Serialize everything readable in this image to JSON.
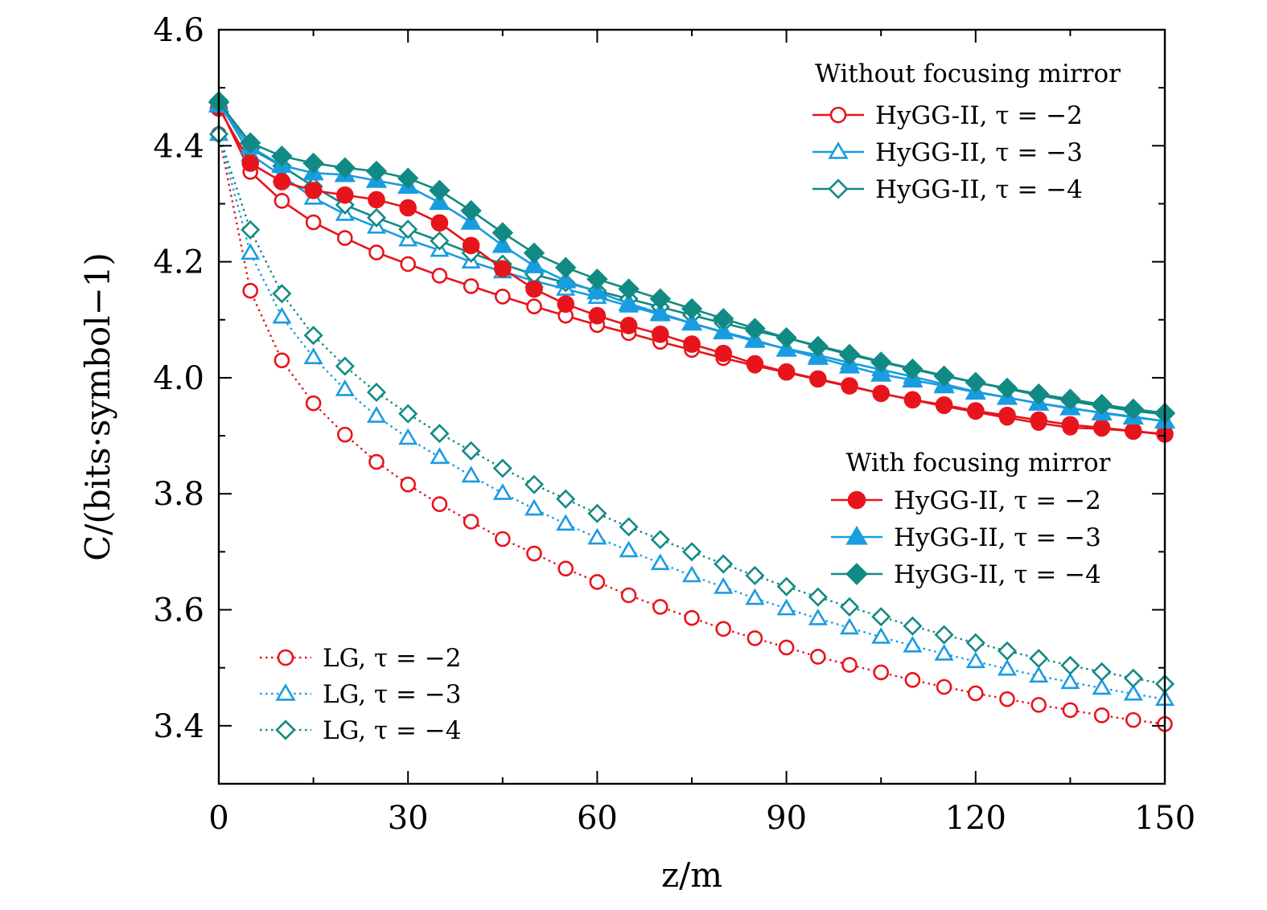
{
  "chart_data": {
    "type": "line",
    "xlabel": "z/m",
    "ylabel": "C/(bits·symbol−1)",
    "xlim": [
      0,
      150
    ],
    "ylim": [
      3.3,
      4.6
    ],
    "xticks": [
      0,
      30,
      60,
      90,
      120,
      150
    ],
    "xtick_labels": [
      "0",
      "30",
      "60",
      "90",
      "120",
      "150"
    ],
    "yticks": [
      3.4,
      3.6,
      3.8,
      4.0,
      4.2,
      4.4,
      4.6
    ],
    "ytick_labels": [
      "3.4",
      "3.6",
      "3.8",
      "4.0",
      "4.2",
      "4.4",
      "4.6"
    ],
    "grid": false,
    "x": [
      0,
      5,
      10,
      15,
      20,
      25,
      30,
      35,
      40,
      45,
      50,
      55,
      60,
      65,
      70,
      75,
      80,
      85,
      90,
      95,
      100,
      105,
      110,
      115,
      120,
      125,
      130,
      135,
      140,
      145,
      150
    ],
    "legend_groups": [
      {
        "title": "Without focusing mirror",
        "position": "top-right",
        "entries": [
          {
            "series": 0,
            "label": "HyGG-II, τ = −2"
          },
          {
            "series": 1,
            "label": "HyGG-II, τ = −3"
          },
          {
            "series": 2,
            "label": "HyGG-II, τ = −4"
          }
        ]
      },
      {
        "title": "With focusing mirror",
        "position": "center-right",
        "entries": [
          {
            "series": 3,
            "label": "HyGG-II, τ = −2"
          },
          {
            "series": 4,
            "label": "HyGG-II, τ = −3"
          },
          {
            "series": 5,
            "label": "HyGG-II, τ = −4"
          }
        ]
      },
      {
        "title": "",
        "position": "bottom-left",
        "entries": [
          {
            "series": 6,
            "label": "LG, τ = −2"
          },
          {
            "series": 7,
            "label": "LG, τ = −3"
          },
          {
            "series": 8,
            "label": "LG, τ = −4"
          }
        ]
      }
    ],
    "series": [
      {
        "name": "HyGG-II, τ = −2",
        "group": "Without focusing mirror",
        "color": "#e8141c",
        "marker": "circle",
        "filled": false,
        "line": "solid",
        "values": [
          4.47,
          4.355,
          4.305,
          4.268,
          4.241,
          4.216,
          4.196,
          4.176,
          4.158,
          4.14,
          4.123,
          4.107,
          4.091,
          4.077,
          4.062,
          4.048,
          4.034,
          4.021,
          4.009,
          3.997,
          3.985,
          3.973,
          3.962,
          3.951,
          3.941,
          3.931,
          3.922,
          3.914,
          3.912,
          3.908,
          3.902
        ]
      },
      {
        "name": "HyGG-II, τ = −3",
        "group": "Without focusing mirror",
        "color": "#1a9ce0",
        "marker": "triangle",
        "filled": false,
        "line": "solid",
        "values": [
          4.475,
          4.385,
          4.348,
          4.31,
          4.282,
          4.26,
          4.238,
          4.22,
          4.2,
          4.183,
          4.167,
          4.153,
          4.139,
          4.124,
          4.109,
          4.094,
          4.078,
          4.063,
          4.05,
          4.039,
          4.026,
          4.014,
          4.002,
          3.989,
          3.976,
          3.966,
          3.956,
          3.947,
          3.94,
          3.933,
          3.925
        ]
      },
      {
        "name": "HyGG-II, τ = −4",
        "group": "Without focusing mirror",
        "color": "#128a84",
        "marker": "diamond",
        "filled": false,
        "line": "solid",
        "values": [
          4.478,
          4.395,
          4.365,
          4.33,
          4.298,
          4.276,
          4.256,
          4.236,
          4.215,
          4.196,
          4.178,
          4.164,
          4.15,
          4.136,
          4.122,
          4.108,
          4.094,
          4.081,
          4.069,
          4.055,
          4.042,
          4.028,
          4.016,
          4.004,
          3.992,
          3.981,
          3.97,
          3.96,
          3.951,
          3.943,
          3.937
        ]
      },
      {
        "name": "HyGG-II, τ = −2",
        "group": "With focusing mirror",
        "color": "#e8141c",
        "marker": "circle",
        "filled": true,
        "line": "solid",
        "values": [
          4.465,
          4.37,
          4.338,
          4.323,
          4.315,
          4.307,
          4.293,
          4.267,
          4.228,
          4.188,
          4.153,
          4.127,
          4.107,
          4.09,
          4.075,
          4.058,
          4.042,
          4.024,
          4.01,
          3.998,
          3.986,
          3.973,
          3.962,
          3.953,
          3.943,
          3.935,
          3.927,
          3.919,
          3.914,
          3.908,
          3.903
        ]
      },
      {
        "name": "HyGG-II, τ = −3",
        "group": "With focusing mirror",
        "color": "#1a9ce0",
        "marker": "triangle",
        "filled": true,
        "line": "solid",
        "values": [
          4.47,
          4.398,
          4.366,
          4.353,
          4.35,
          4.34,
          4.33,
          4.302,
          4.268,
          4.228,
          4.193,
          4.167,
          4.148,
          4.128,
          4.111,
          4.094,
          4.079,
          4.065,
          4.049,
          4.035,
          4.02,
          4.006,
          3.996,
          3.986,
          3.975,
          3.966,
          3.956,
          3.948,
          3.939,
          3.932,
          3.925
        ]
      },
      {
        "name": "HyGG-II, τ = −4",
        "group": "With focusing mirror",
        "color": "#128a84",
        "marker": "diamond",
        "filled": true,
        "line": "solid",
        "values": [
          4.475,
          4.405,
          4.382,
          4.37,
          4.362,
          4.356,
          4.344,
          4.323,
          4.288,
          4.25,
          4.215,
          4.19,
          4.17,
          4.153,
          4.136,
          4.119,
          4.102,
          4.085,
          4.069,
          4.054,
          4.04,
          4.027,
          4.015,
          4.003,
          3.992,
          3.982,
          3.972,
          3.963,
          3.954,
          3.946,
          3.939
        ]
      },
      {
        "name": "LG, τ = −2",
        "group": "LG",
        "color": "#e8141c",
        "marker": "circle",
        "filled": false,
        "line": "dotted",
        "values": [
          4.42,
          4.15,
          4.03,
          3.956,
          3.902,
          3.855,
          3.816,
          3.782,
          3.752,
          3.722,
          3.697,
          3.671,
          3.648,
          3.625,
          3.605,
          3.586,
          3.567,
          3.551,
          3.535,
          3.519,
          3.505,
          3.492,
          3.479,
          3.467,
          3.456,
          3.446,
          3.436,
          3.427,
          3.418,
          3.41,
          3.403
        ]
      },
      {
        "name": "LG, τ = −3",
        "group": "LG",
        "color": "#1a9ce0",
        "marker": "triangle",
        "filled": false,
        "line": "dotted",
        "values": [
          4.42,
          4.215,
          4.105,
          4.035,
          3.98,
          3.934,
          3.896,
          3.863,
          3.831,
          3.801,
          3.774,
          3.748,
          3.724,
          3.702,
          3.68,
          3.659,
          3.639,
          3.62,
          3.602,
          3.585,
          3.569,
          3.553,
          3.538,
          3.524,
          3.511,
          3.498,
          3.486,
          3.475,
          3.465,
          3.455,
          3.446
        ]
      },
      {
        "name": "LG, τ = −4",
        "group": "LG",
        "color": "#128a84",
        "marker": "diamond",
        "filled": false,
        "line": "dotted",
        "values": [
          4.42,
          4.255,
          4.145,
          4.073,
          4.02,
          3.975,
          3.938,
          3.904,
          3.874,
          3.844,
          3.816,
          3.791,
          3.766,
          3.743,
          3.721,
          3.7,
          3.679,
          3.659,
          3.64,
          3.622,
          3.605,
          3.588,
          3.572,
          3.557,
          3.543,
          3.529,
          3.516,
          3.504,
          3.493,
          3.482,
          3.472
        ]
      }
    ]
  }
}
